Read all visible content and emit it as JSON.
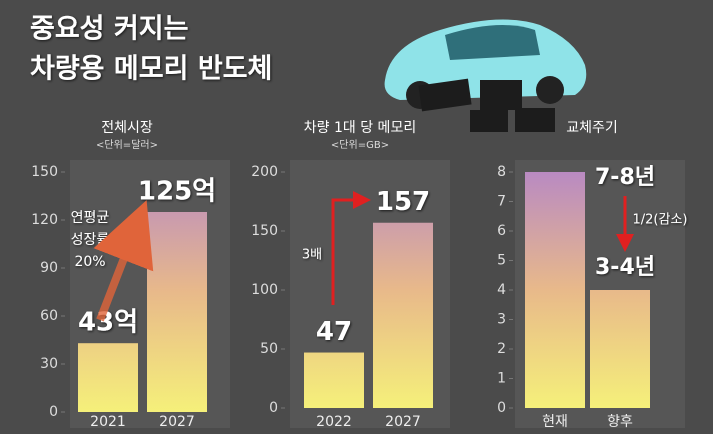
{
  "title": [
    "중요성 커지는",
    "차량용 메모리 반도체"
  ],
  "chart_data": [
    {
      "type": "bar",
      "title": "전체시장",
      "subtitle": "<단위=달러>",
      "categories": [
        "2021",
        "2027"
      ],
      "values": [
        43,
        125
      ],
      "value_labels": [
        "43억",
        "125억"
      ],
      "ylim": [
        0,
        150
      ],
      "yticks": [
        0,
        30,
        60,
        90,
        120,
        150
      ],
      "annotations": [
        "연평균",
        "성장률",
        "20%"
      ]
    },
    {
      "type": "bar",
      "title": "차량 1대 당 메모리",
      "subtitle": "<단위=GB>",
      "categories": [
        "2022",
        "2027"
      ],
      "values": [
        47,
        157
      ],
      "ylim": [
        0,
        200
      ],
      "yticks": [
        0,
        50,
        100,
        150,
        200
      ],
      "annotations": [
        "3배"
      ]
    },
    {
      "type": "bar",
      "title": "교체주기",
      "categories": [
        "현재",
        "향후"
      ],
      "values": [
        8,
        4
      ],
      "ylim": [
        0,
        8
      ],
      "yticks": [
        0,
        1,
        2,
        3,
        4,
        5,
        6,
        7,
        8
      ],
      "annotations": [
        "7-8년",
        "3-4년",
        "1/2(감소)"
      ]
    }
  ]
}
